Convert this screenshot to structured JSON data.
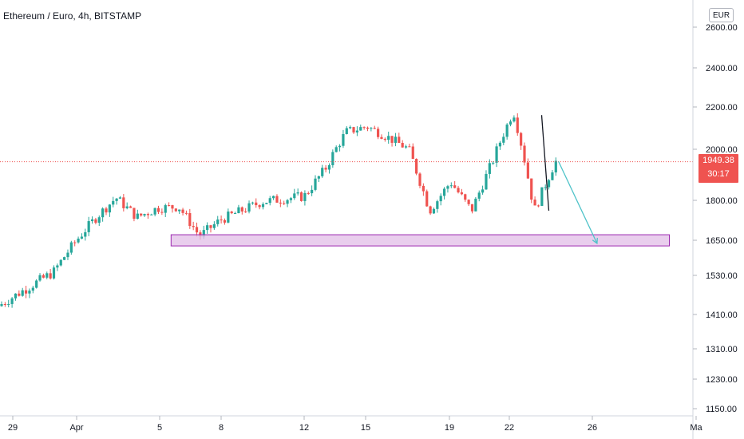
{
  "chart_data": {
    "type": "candlestick",
    "title": "Ethereum / Euro, 4h, BITSTAMP",
    "currency": "EUR",
    "current_price": "1949.38",
    "countdown": "30:17",
    "y_ticks": [
      "2600.00",
      "2400.00",
      "2200.00",
      "2000.00",
      "1800.00",
      "1650.00",
      "1530.00",
      "1410.00",
      "1310.00",
      "1230.00",
      "1150.00"
    ],
    "x_ticks": [
      "29",
      "Apr",
      "5",
      "8",
      "12",
      "15",
      "19",
      "22",
      "26",
      "Ma"
    ],
    "y_scale": "log",
    "ylim": [
      1120,
      2700
    ],
    "grid": false,
    "up_color": "#26a69a",
    "down_color": "#ef5350",
    "trend_path": [
      {
        "date": "Mar 28",
        "price": 1420
      },
      {
        "date": "Mar 31",
        "price": 1540
      },
      {
        "date": "Apr 1",
        "price": 1640
      },
      {
        "date": "Apr 2",
        "price": 1730
      },
      {
        "date": "Apr 3",
        "price": 1810
      },
      {
        "date": "Apr 4",
        "price": 1735
      },
      {
        "date": "Apr 5",
        "price": 1770
      },
      {
        "date": "Apr 6",
        "price": 1775
      },
      {
        "date": "Apr 7",
        "price": 1665
      },
      {
        "date": "Apr 8",
        "price": 1725
      },
      {
        "date": "Apr 10",
        "price": 1795
      },
      {
        "date": "Apr 12",
        "price": 1815
      },
      {
        "date": "Apr 13",
        "price": 1920
      },
      {
        "date": "Apr 14",
        "price": 2080
      },
      {
        "date": "Apr 15",
        "price": 2105
      },
      {
        "date": "Apr 16",
        "price": 2055
      },
      {
        "date": "Apr 17",
        "price": 2000
      },
      {
        "date": "Apr 18",
        "price": 1760
      },
      {
        "date": "Apr 19",
        "price": 1870
      },
      {
        "date": "Apr 20",
        "price": 1760
      },
      {
        "date": "Apr 21",
        "price": 1950
      },
      {
        "date": "Apr 22",
        "price": 2180
      },
      {
        "date": "Apr 23",
        "price": 1760
      },
      {
        "date": "Apr 24",
        "price": 1950
      }
    ],
    "support_zone": {
      "from": "Apr 7",
      "to": "Apr 28",
      "low": 1630,
      "high": 1670,
      "color": "#e1bee7",
      "border": "#9c27b0"
    },
    "projection": {
      "from": {
        "date": "Apr 24",
        "price": 1950
      },
      "to": {
        "date": "Apr 25",
        "price": 1625
      },
      "color": "#4fc3c9"
    },
    "drawn_line": {
      "from": {
        "date": "Apr 23",
        "price": 2160
      },
      "to": {
        "date": "Apr 23",
        "price": 1760
      }
    }
  }
}
